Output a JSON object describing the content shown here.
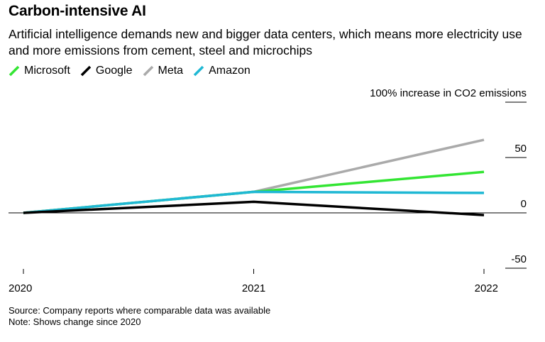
{
  "header": {
    "title": "Carbon-intensive AI",
    "subtitle": "Artificial intelligence demands new and bigger data centers, which means more electricity use and more emissions from cement, steel and microchips"
  },
  "footer": {
    "source": "Source: Company reports where comparable data was available",
    "note": "Note: Shows change since 2020"
  },
  "chart_data": {
    "type": "line",
    "title": "Carbon-intensive AI",
    "subtitle": "Artificial intelligence demands new and bigger data centers, which means more electricity use and more emissions from cement, steel and microchips",
    "x": [
      "2020",
      "2021",
      "2022"
    ],
    "ylabel": "100% increase in CO2 emissions",
    "ylim": [
      -50,
      100
    ],
    "yticks": [
      {
        "value": 100,
        "label": "100% increase in CO2 emissions"
      },
      {
        "value": 50,
        "label": "50"
      },
      {
        "value": 0,
        "label": "0"
      },
      {
        "value": -50,
        "label": "-50"
      }
    ],
    "grid": false,
    "legend_position": "top-left",
    "series": [
      {
        "name": "Microsoft",
        "color": "#33e533",
        "values": [
          0,
          19,
          37
        ]
      },
      {
        "name": "Google",
        "color": "#000000",
        "values": [
          0,
          10,
          -2
        ]
      },
      {
        "name": "Meta",
        "color": "#aaaaaa",
        "values": [
          0,
          19,
          66
        ]
      },
      {
        "name": "Amazon",
        "color": "#1fb8d4",
        "values": [
          0,
          19,
          18
        ]
      }
    ],
    "draw_order": [
      "Meta",
      "Microsoft",
      "Amazon",
      "Google"
    ]
  }
}
